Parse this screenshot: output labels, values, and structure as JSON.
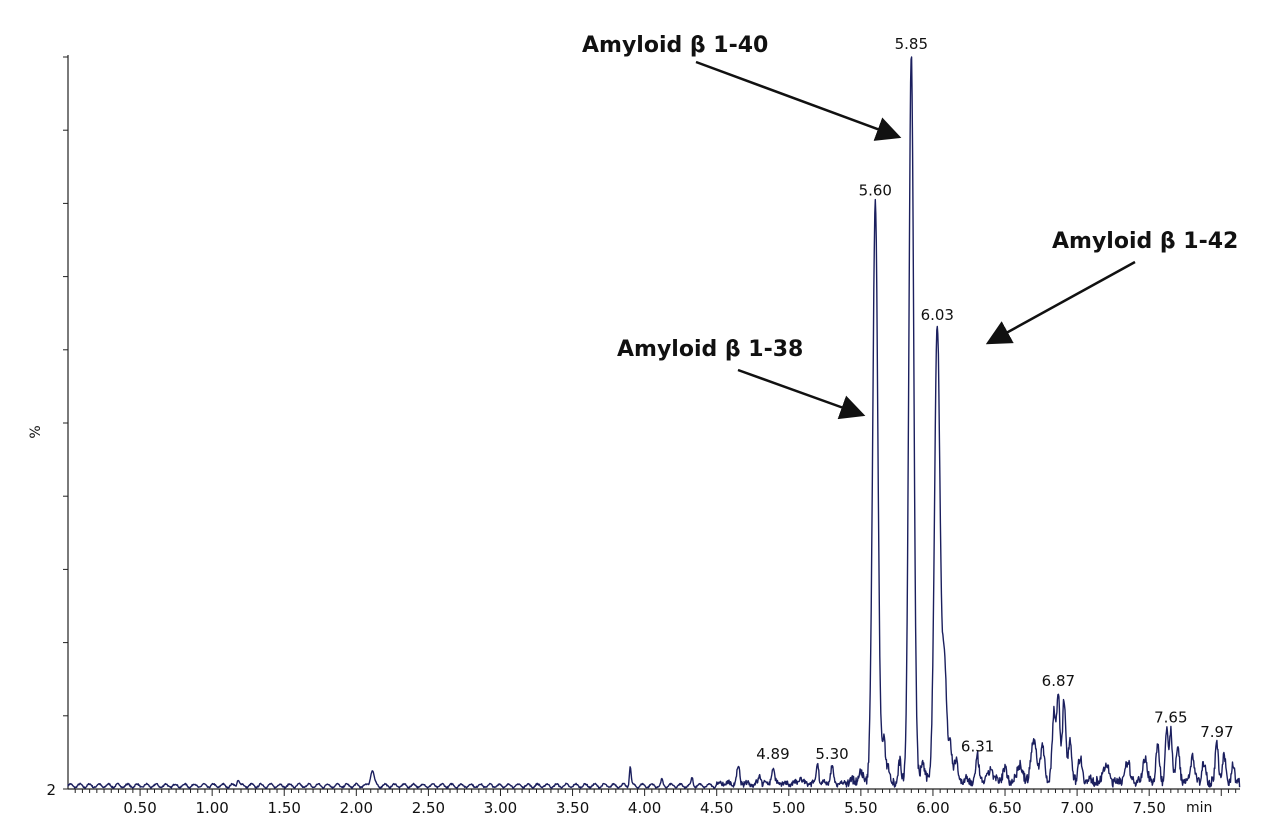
{
  "chart_data": {
    "type": "line",
    "title": "",
    "xlabel": "",
    "x_unit": "min",
    "ylabel": "%",
    "y_baseline_label": "2",
    "xlim": [
      0.0,
      8.13
    ],
    "ylim": [
      0,
      100
    ],
    "x_ticks": [
      "0.50",
      "1.00",
      "1.50",
      "2.00",
      "2.50",
      "3.00",
      "3.50",
      "4.00",
      "4.50",
      "5.00",
      "5.50",
      "6.00",
      "6.50",
      "7.00",
      "7.50"
    ],
    "x_tick_values": [
      0.5,
      1.0,
      1.5,
      2.0,
      2.5,
      3.0,
      3.5,
      4.0,
      4.5,
      5.0,
      5.5,
      6.0,
      6.5,
      7.0,
      7.5
    ],
    "grid": false,
    "line_color": "#1b1f5e",
    "peaks": [
      {
        "label": "4.89",
        "x": 4.89,
        "y": 3
      },
      {
        "label": "5.30",
        "x": 5.3,
        "y": 3
      },
      {
        "label": "5.60",
        "x": 5.6,
        "y": 80
      },
      {
        "label": "5.85",
        "x": 5.85,
        "y": 100
      },
      {
        "label": "6.03",
        "x": 6.03,
        "y": 63
      },
      {
        "label": "6.31",
        "x": 6.31,
        "y": 4
      },
      {
        "label": "6.87",
        "x": 6.87,
        "y": 13
      },
      {
        "label": "7.65",
        "x": 7.65,
        "y": 8
      },
      {
        "label": "7.97",
        "x": 7.97,
        "y": 6
      }
    ],
    "annotations": [
      {
        "text": "Amyloid β 1-40",
        "points_to": 5.85
      },
      {
        "text": "Amyloid β 1-38",
        "points_to": 5.6
      },
      {
        "text": "Amyloid β 1-42",
        "points_to": 6.03
      }
    ]
  }
}
